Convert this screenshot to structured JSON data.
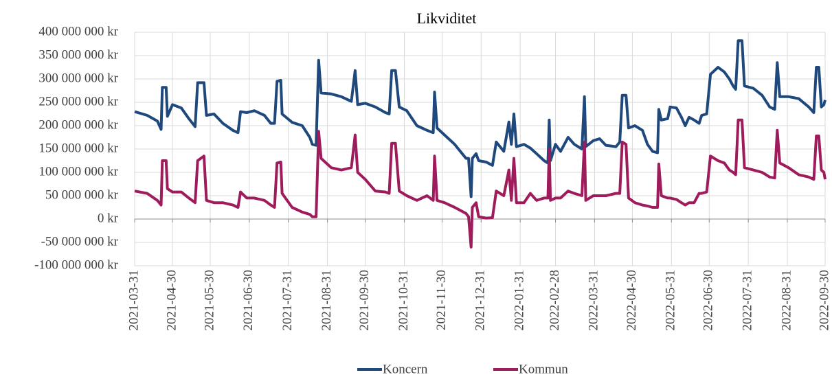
{
  "chart_data": {
    "type": "line",
    "title": "Likviditet",
    "x": [
      "2021-03-31",
      "2021-04-10",
      "2021-04-18",
      "2021-04-21",
      "2021-04-22",
      "2021-04-25",
      "2021-04-26",
      "2021-04-30",
      "2021-05-07",
      "2021-05-13",
      "2021-05-18",
      "2021-05-20",
      "2021-05-25",
      "2021-05-27",
      "2021-06-02",
      "2021-06-09",
      "2021-06-17",
      "2021-06-21",
      "2021-06-23",
      "2021-06-28",
      "2021-07-04",
      "2021-07-12",
      "2021-07-17",
      "2021-07-20",
      "2021-07-22",
      "2021-07-25",
      "2021-07-26",
      "2021-08-03",
      "2021-08-11",
      "2021-08-17",
      "2021-08-19",
      "2021-08-22",
      "2021-08-24",
      "2021-08-26",
      "2021-09-03",
      "2021-09-11",
      "2021-09-19",
      "2021-09-22",
      "2021-09-24",
      "2021-09-30",
      "2021-10-08",
      "2021-10-16",
      "2021-10-19",
      "2021-10-21",
      "2021-10-24",
      "2021-10-27",
      "2021-11-02",
      "2021-11-10",
      "2021-11-18",
      "2021-11-23",
      "2021-11-24",
      "2021-11-26",
      "2021-12-02",
      "2021-12-10",
      "2021-12-19",
      "2021-12-21",
      "2021-12-23",
      "2021-12-24",
      "2021-12-27",
      "2021-12-29",
      "2022-01-04",
      "2022-01-09",
      "2022-01-12",
      "2022-01-18",
      "2022-01-22",
      "2022-01-24",
      "2022-01-26",
      "2022-01-28",
      "2022-02-03",
      "2022-02-08",
      "2022-02-13",
      "2022-02-19",
      "2022-02-22",
      "2022-02-23",
      "2022-02-24",
      "2022-02-28",
      "2022-03-04",
      "2022-03-10",
      "2022-03-15",
      "2022-03-21",
      "2022-03-23",
      "2022-03-24",
      "2022-03-30",
      "2022-04-04",
      "2022-04-09",
      "2022-04-17",
      "2022-04-20",
      "2022-04-22",
      "2022-04-25",
      "2022-04-27",
      "2022-05-02",
      "2022-05-08",
      "2022-05-12",
      "2022-05-16",
      "2022-05-20",
      "2022-05-21",
      "2022-05-23",
      "2022-05-28",
      "2022-05-30",
      "2022-06-04",
      "2022-06-08",
      "2022-06-11",
      "2022-06-14",
      "2022-06-18",
      "2022-06-22",
      "2022-06-24",
      "2022-06-28",
      "2022-07-01",
      "2022-07-07",
      "2022-07-12",
      "2022-07-16",
      "2022-07-19",
      "2022-07-21",
      "2022-07-23",
      "2022-07-26",
      "2022-07-28",
      "2022-08-04",
      "2022-08-11",
      "2022-08-17",
      "2022-08-21",
      "2022-08-23",
      "2022-08-25",
      "2022-09-01",
      "2022-09-09",
      "2022-09-17",
      "2022-09-21",
      "2022-09-23",
      "2022-09-25",
      "2022-09-27",
      "2022-09-29",
      "2022-09-30"
    ],
    "series": [
      {
        "name": "Koncern",
        "color": "#1f497d",
        "values": [
          230000000,
          222000000,
          210000000,
          192000000,
          282000000,
          282000000,
          220000000,
          245000000,
          238000000,
          215000000,
          198000000,
          292000000,
          292000000,
          222000000,
          225000000,
          205000000,
          190000000,
          185000000,
          230000000,
          228000000,
          232000000,
          222000000,
          205000000,
          205000000,
          295000000,
          297000000,
          225000000,
          207000000,
          200000000,
          175000000,
          160000000,
          158000000,
          340000000,
          270000000,
          268000000,
          262000000,
          252000000,
          318000000,
          245000000,
          248000000,
          240000000,
          228000000,
          225000000,
          318000000,
          318000000,
          240000000,
          232000000,
          200000000,
          190000000,
          185000000,
          272000000,
          195000000,
          180000000,
          160000000,
          130000000,
          130000000,
          48000000,
          130000000,
          140000000,
          125000000,
          122000000,
          115000000,
          165000000,
          145000000,
          208000000,
          160000000,
          225000000,
          155000000,
          160000000,
          152000000,
          140000000,
          125000000,
          120000000,
          212000000,
          125000000,
          160000000,
          145000000,
          175000000,
          160000000,
          150000000,
          262000000,
          155000000,
          168000000,
          172000000,
          158000000,
          155000000,
          165000000,
          265000000,
          265000000,
          195000000,
          200000000,
          190000000,
          160000000,
          145000000,
          142000000,
          235000000,
          212000000,
          215000000,
          240000000,
          238000000,
          218000000,
          200000000,
          218000000,
          212000000,
          205000000,
          222000000,
          225000000,
          310000000,
          325000000,
          315000000,
          300000000,
          285000000,
          278000000,
          382000000,
          382000000,
          285000000,
          280000000,
          265000000,
          240000000,
          235000000,
          335000000,
          262000000,
          262000000,
          258000000,
          240000000,
          228000000,
          325000000,
          325000000,
          240000000,
          245000000,
          255000000
        ]
      },
      {
        "name": "Kommun",
        "color": "#9e1b5c",
        "values": [
          60000000,
          55000000,
          40000000,
          30000000,
          125000000,
          125000000,
          65000000,
          58000000,
          58000000,
          45000000,
          35000000,
          125000000,
          135000000,
          40000000,
          35000000,
          35000000,
          30000000,
          25000000,
          58000000,
          45000000,
          45000000,
          40000000,
          30000000,
          25000000,
          120000000,
          122000000,
          55000000,
          25000000,
          15000000,
          10000000,
          5000000,
          5000000,
          188000000,
          130000000,
          110000000,
          105000000,
          110000000,
          180000000,
          100000000,
          85000000,
          60000000,
          58000000,
          55000000,
          162000000,
          162000000,
          60000000,
          50000000,
          40000000,
          50000000,
          40000000,
          135000000,
          40000000,
          35000000,
          25000000,
          12000000,
          5000000,
          -60000000,
          25000000,
          35000000,
          5000000,
          2000000,
          3000000,
          60000000,
          50000000,
          105000000,
          40000000,
          130000000,
          35000000,
          35000000,
          55000000,
          40000000,
          45000000,
          45000000,
          150000000,
          40000000,
          45000000,
          45000000,
          60000000,
          55000000,
          50000000,
          165000000,
          40000000,
          50000000,
          50000000,
          50000000,
          55000000,
          55000000,
          165000000,
          160000000,
          45000000,
          35000000,
          30000000,
          28000000,
          25000000,
          25000000,
          118000000,
          50000000,
          45000000,
          45000000,
          42000000,
          35000000,
          30000000,
          35000000,
          35000000,
          55000000,
          55000000,
          58000000,
          135000000,
          125000000,
          120000000,
          105000000,
          100000000,
          95000000,
          212000000,
          212000000,
          110000000,
          105000000,
          100000000,
          90000000,
          88000000,
          190000000,
          120000000,
          110000000,
          95000000,
          90000000,
          85000000,
          178000000,
          178000000,
          105000000,
          100000000,
          85000000
        ]
      }
    ],
    "xlim": [
      "2021-03-31",
      "2022-09-30"
    ],
    "xticks": [
      "2021-03-31",
      "2021-04-30",
      "2021-05-30",
      "2021-06-30",
      "2021-07-31",
      "2021-08-31",
      "2021-09-30",
      "2021-10-31",
      "2021-11-30",
      "2021-12-31",
      "2022-01-31",
      "2022-02-28",
      "2022-03-31",
      "2022-04-30",
      "2022-05-31",
      "2022-06-30",
      "2022-07-31",
      "2022-08-31",
      "2022-09-30"
    ],
    "ylim": [
      -100000000,
      400000000
    ],
    "yticks": [
      {
        "value": -100000000,
        "label": "-100 000 000 kr"
      },
      {
        "value": -50000000,
        "label": "-50 000 000 kr"
      },
      {
        "value": 0,
        "label": "0 kr"
      },
      {
        "value": 50000000,
        "label": "50 000 000 kr"
      },
      {
        "value": 100000000,
        "label": "100 000 000 kr"
      },
      {
        "value": 150000000,
        "label": "150 000 000 kr"
      },
      {
        "value": 200000000,
        "label": "200 000 000 kr"
      },
      {
        "value": 250000000,
        "label": "250 000 000 kr"
      },
      {
        "value": 300000000,
        "label": "300 000 000 kr"
      },
      {
        "value": 350000000,
        "label": "350 000 000 kr"
      },
      {
        "value": 400000000,
        "label": "400 000 000 kr"
      }
    ],
    "grid": true,
    "legend": "bottom"
  }
}
